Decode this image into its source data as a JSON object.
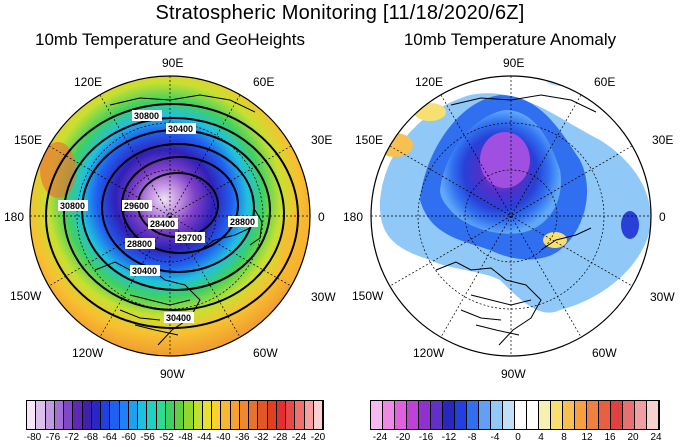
{
  "title": "Stratospheric Monitoring [11/18/2020/6Z]",
  "left_panel": {
    "title": "10mb Temperature and GeoHeights",
    "longitude_labels": [
      "90E",
      "60E",
      "30E",
      "0",
      "30W",
      "60W",
      "90W",
      "120W",
      "150W",
      "180",
      "150E",
      "120E"
    ],
    "contour_labels": [
      "30800",
      "30400",
      "29600",
      "28800",
      "28800",
      "30400",
      "30400",
      "30800",
      "29700",
      "28400"
    ],
    "colorbar_ticks": [
      "-80",
      "-76",
      "-72",
      "-68",
      "-64",
      "-60",
      "-56",
      "-52",
      "-48",
      "-44",
      "-40",
      "-36",
      "-32",
      "-28",
      "-24",
      "-20"
    ],
    "colorbar_colors": [
      "#f4e8f8",
      "#dcc0ec",
      "#c09ae0",
      "#a070d4",
      "#8048c8",
      "#6028b8",
      "#4020b0",
      "#2828c8",
      "#2040e0",
      "#2060f0",
      "#2080f8",
      "#20a0f0",
      "#20c0e0",
      "#20d0c0",
      "#30d890",
      "#40d060",
      "#60d040",
      "#90d830",
      "#c0e030",
      "#e8e030",
      "#f8d030",
      "#f8b830",
      "#f8a030",
      "#f08830",
      "#e87030",
      "#e05828",
      "#e04020",
      "#e03030",
      "#e84848",
      "#f07070",
      "#f8a0a0",
      "#fcd0d0"
    ]
  },
  "right_panel": {
    "title": "10mb Temperature Anomaly",
    "longitude_labels": [
      "90E",
      "60E",
      "30E",
      "0",
      "30W",
      "60W",
      "90W",
      "120W",
      "150W",
      "180",
      "150E",
      "120E"
    ],
    "colorbar_ticks": [
      "-24",
      "-20",
      "-16",
      "-12",
      "-8",
      "-4",
      "0",
      "4",
      "8",
      "12",
      "16",
      "20",
      "24"
    ],
    "colorbar_colors": [
      "#f8b8f0",
      "#f088e8",
      "#e060e0",
      "#c040d8",
      "#9030d0",
      "#6030c8",
      "#2828c0",
      "#2040e0",
      "#3070f0",
      "#60a0f8",
      "#90c8f8",
      "#c0e0f8",
      "#ffffff",
      "#ffffff",
      "#f8f0b0",
      "#f8e070",
      "#f8c050",
      "#f8a040",
      "#f08040",
      "#e86040",
      "#e04040",
      "#e87070",
      "#f0a0a0",
      "#f8d0d0"
    ]
  }
}
